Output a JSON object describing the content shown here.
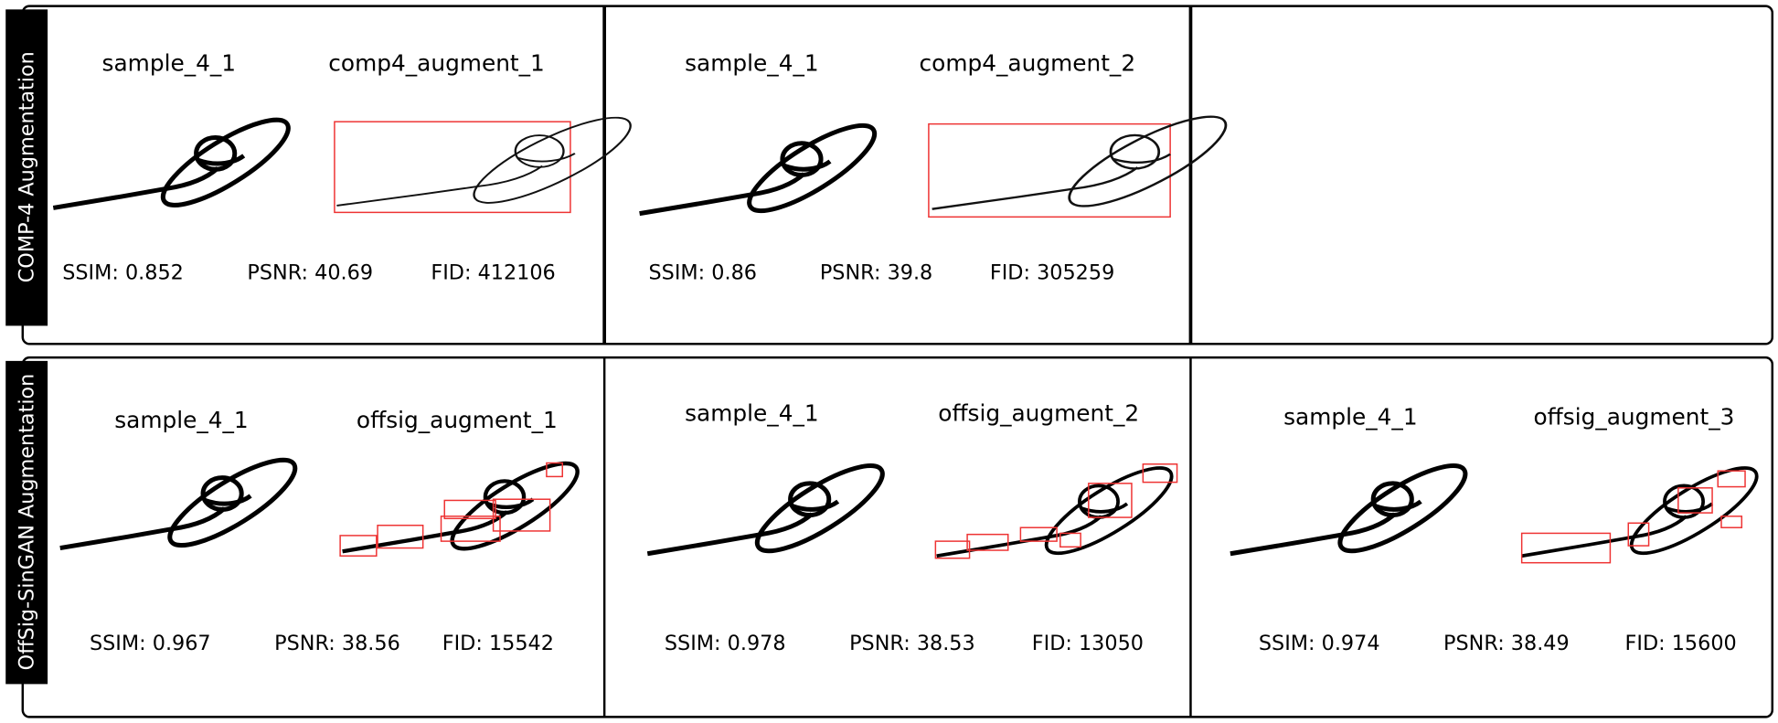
{
  "rows": [
    {
      "label": "COMP-4 Augmentation",
      "panels": [
        {
          "captions": [
            "sample_4_1",
            "comp4_augment_1"
          ],
          "metrics": [
            "SSIM: 0.852",
            "PSNR: 40.69",
            "FID: 412106"
          ]
        },
        {
          "captions": [
            "sample_4_1",
            "comp4_augment_2"
          ],
          "metrics": [
            "SSIM: 0.86",
            "PSNR: 39.8",
            "FID: 305259"
          ]
        }
      ]
    },
    {
      "label": "OffSig-SinGAN Augmentation",
      "panels": [
        {
          "captions": [
            "sample_4_1",
            "offsig_augment_1"
          ],
          "metrics": [
            "SSIM: 0.967",
            "PSNR: 38.56",
            "FID: 15542"
          ]
        },
        {
          "captions": [
            "sample_4_1",
            "offsig_augment_2"
          ],
          "metrics": [
            "SSIM: 0.978",
            "PSNR: 38.53",
            "FID: 13050"
          ]
        },
        {
          "captions": [
            "sample_4_1",
            "offsig_augment_3"
          ],
          "metrics": [
            "SSIM: 0.974",
            "PSNR: 38.49",
            "FID: 15600"
          ]
        }
      ]
    }
  ]
}
